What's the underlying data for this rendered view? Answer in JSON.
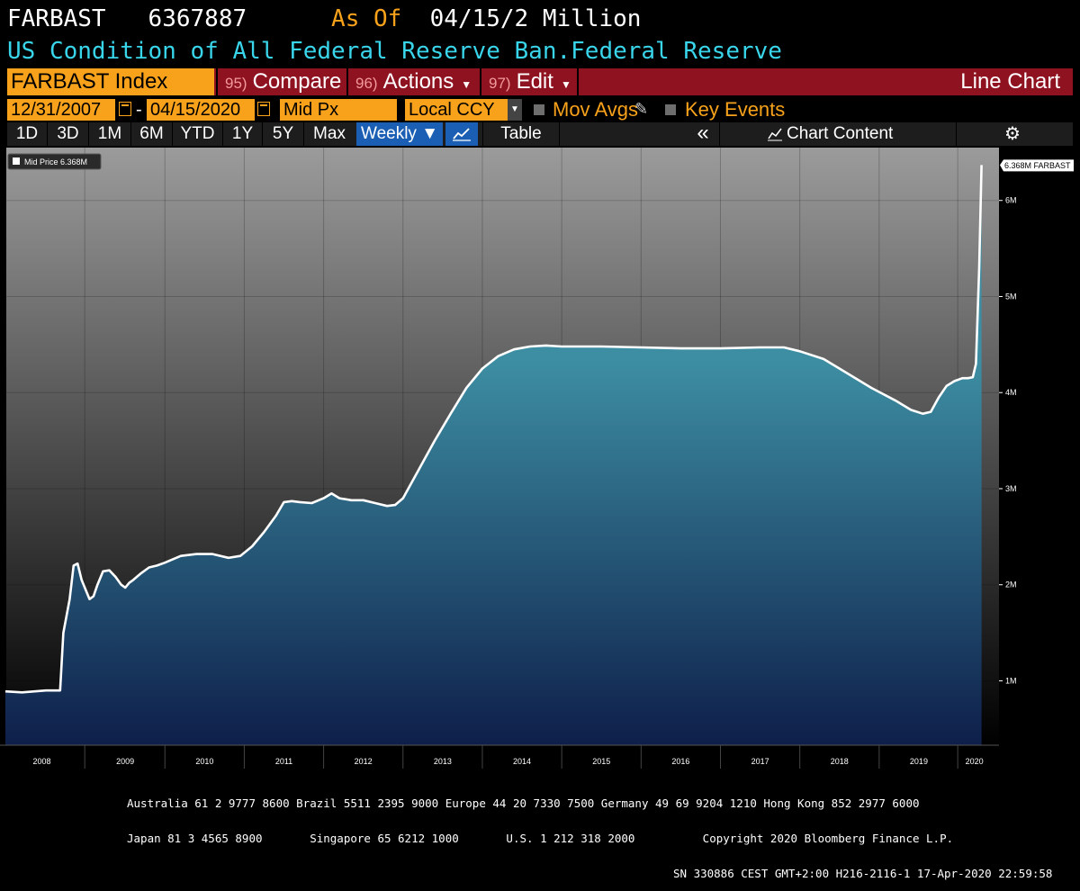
{
  "header": {
    "ticker": "FARBAST",
    "value": "6367887",
    "as_of_label": "As Of",
    "as_of_value": "04/15/2 Million",
    "description": "US Condition of All Federal Reserve Ban.Federal Reserve"
  },
  "toolbar": {
    "index_label": "FARBAST Index",
    "compare": {
      "num": "95)",
      "label": "Compare"
    },
    "actions": {
      "num": "96)",
      "label": "Actions"
    },
    "edit": {
      "num": "97)",
      "label": "Edit"
    },
    "chart_type": "Line Chart"
  },
  "range": {
    "start": "12/31/2007",
    "dash": "-",
    "end": "04/15/2020",
    "price_field": "Mid Px",
    "currency": "Local CCY",
    "mov_avgs": "Mov Avgs",
    "key_events": "Key Events"
  },
  "periods": [
    "1D",
    "3D",
    "1M",
    "6M",
    "YTD",
    "1Y",
    "5Y",
    "Max"
  ],
  "frequency": "Weekly ▼",
  "table_label": "Table",
  "collapse_glyph": "«",
  "chart_content_label": "Chart Content",
  "gear_glyph": "⚙",
  "colors": {
    "orange": "#f8a21b",
    "cyan": "#39d5ea",
    "maroon": "#8f1220",
    "selected_blue": "#1a5fb4",
    "line": "#ffffff",
    "area_top": "#3d8ea3",
    "area_bottom": "#0e1f4a"
  },
  "chart_data": {
    "type": "area",
    "legend": "Mid Price 6.368M",
    "last_label": "6.368M FARBAST",
    "y_unit": "M",
    "ylim": [
      0.33,
      6.55
    ],
    "y_ticks": [
      {
        "value": 1,
        "label": "1M"
      },
      {
        "value": 2,
        "label": "2M"
      },
      {
        "value": 3,
        "label": "3M"
      },
      {
        "value": 4,
        "label": "4M"
      },
      {
        "value": 5,
        "label": "5M"
      },
      {
        "value": 6,
        "label": "6M"
      }
    ],
    "xlim": [
      2007.99,
      2020.51
    ],
    "x_ticks": [
      {
        "value": 2008.45,
        "label": "2008"
      },
      {
        "value": 2009.5,
        "label": "2009"
      },
      {
        "value": 2010.5,
        "label": "2010"
      },
      {
        "value": 2011.5,
        "label": "2011"
      },
      {
        "value": 2012.5,
        "label": "2012"
      },
      {
        "value": 2013.5,
        "label": "2013"
      },
      {
        "value": 2014.5,
        "label": "2014"
      },
      {
        "value": 2015.5,
        "label": "2015"
      },
      {
        "value": 2016.5,
        "label": "2016"
      },
      {
        "value": 2017.5,
        "label": "2017"
      },
      {
        "value": 2018.5,
        "label": "2018"
      },
      {
        "value": 2019.5,
        "label": "2019"
      },
      {
        "value": 2020.2,
        "label": "2020"
      }
    ],
    "x_boundaries": [
      2008.99,
      2010,
      2011,
      2012,
      2013,
      2014,
      2015,
      2016,
      2017,
      2018,
      2019,
      2019.99
    ],
    "series": [
      {
        "values_unit": "millions of USD",
        "x": [
          2007.99,
          2008.2,
          2008.5,
          2008.68,
          2008.72,
          2008.8,
          2008.85,
          2008.9,
          2008.95,
          2009.0,
          2009.05,
          2009.1,
          2009.15,
          2009.22,
          2009.3,
          2009.38,
          2009.45,
          2009.5,
          2009.55,
          2009.6,
          2009.7,
          2009.8,
          2009.9,
          2010.0,
          2010.2,
          2010.4,
          2010.6,
          2010.8,
          2010.95,
          2011.1,
          2011.25,
          2011.4,
          2011.5,
          2011.6,
          2011.7,
          2011.85,
          2012.0,
          2012.1,
          2012.2,
          2012.35,
          2012.5,
          2012.65,
          2012.8,
          2012.9,
          2013.0,
          2013.2,
          2013.4,
          2013.6,
          2013.8,
          2014.0,
          2014.2,
          2014.4,
          2014.6,
          2014.8,
          2015.0,
          2015.5,
          2016.0,
          2016.5,
          2017.0,
          2017.5,
          2017.8,
          2018.0,
          2018.3,
          2018.6,
          2018.9,
          2019.2,
          2019.4,
          2019.55,
          2019.65,
          2019.75,
          2019.85,
          2019.95,
          2020.05,
          2020.12,
          2020.18,
          2020.22,
          2020.26,
          2020.29
        ],
        "values": [
          0.89,
          0.88,
          0.9,
          0.9,
          1.5,
          1.85,
          2.2,
          2.22,
          2.05,
          1.95,
          1.85,
          1.88,
          2.0,
          2.14,
          2.15,
          2.08,
          2.0,
          1.97,
          2.02,
          2.05,
          2.12,
          2.18,
          2.2,
          2.23,
          2.3,
          2.32,
          2.32,
          2.28,
          2.3,
          2.4,
          2.55,
          2.72,
          2.86,
          2.87,
          2.86,
          2.85,
          2.9,
          2.95,
          2.9,
          2.88,
          2.88,
          2.85,
          2.82,
          2.83,
          2.9,
          3.2,
          3.5,
          3.78,
          4.05,
          4.25,
          4.38,
          4.45,
          4.48,
          4.49,
          4.48,
          4.48,
          4.47,
          4.46,
          4.46,
          4.47,
          4.47,
          4.43,
          4.35,
          4.2,
          4.05,
          3.92,
          3.82,
          3.78,
          3.8,
          3.95,
          4.07,
          4.12,
          4.15,
          4.15,
          4.16,
          4.3,
          5.3,
          6.368
        ]
      }
    ]
  },
  "footer": {
    "line1": "Australia 61 2 9777 8600 Brazil 5511 2395 9000 Europe 44 20 7330 7500 Germany 49 69 9204 1210 Hong Kong 852 2977 6000",
    "line2": "Japan 81 3 4565 8900       Singapore 65 6212 1000       U.S. 1 212 318 2000          Copyright 2020 Bloomberg Finance L.P.",
    "line3": "SN 330886 CEST GMT+2:00 H216-2116-1 17-Apr-2020 22:59:58"
  }
}
